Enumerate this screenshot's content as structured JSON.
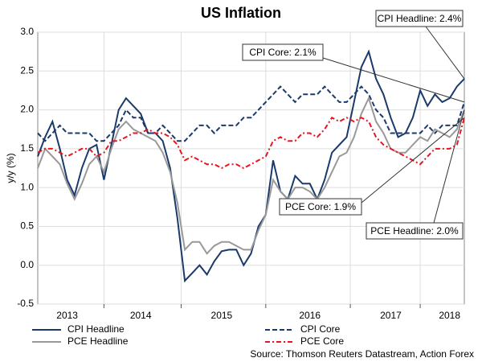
{
  "chart_data": {
    "type": "line",
    "title": "US Inflation",
    "y_label": "y/y (%)",
    "categories": [
      null,
      null,
      null,
      null,
      "2013",
      null,
      null,
      null,
      null,
      null,
      null,
      null,
      null,
      null,
      "2014",
      null,
      null,
      null,
      null,
      null,
      null,
      null,
      null,
      null,
      null,
      "2015",
      null,
      null,
      null,
      null,
      null,
      null,
      null,
      null,
      null,
      null,
      null,
      "2016",
      null,
      null,
      null,
      null,
      null,
      null,
      null,
      null,
      null,
      null,
      "2017",
      null,
      null,
      null,
      null,
      null,
      null,
      null,
      "2018",
      null,
      null
    ],
    "series": [
      {
        "name": "CPI Headline",
        "color": "#1a3a6b",
        "dash": "solid",
        "values": [
          1.4,
          1.65,
          1.85,
          1.5,
          1.1,
          0.9,
          1.25,
          1.5,
          1.55,
          1.1,
          1.55,
          2.0,
          2.15,
          2.05,
          1.95,
          1.7,
          1.7,
          1.6,
          1.25,
          0.6,
          -0.2,
          -0.1,
          0.0,
          -0.12,
          0.05,
          0.18,
          0.2,
          0.2,
          0.0,
          0.15,
          0.5,
          0.65,
          1.35,
          0.95,
          0.85,
          1.15,
          1.05,
          1.05,
          0.85,
          1.1,
          1.45,
          1.55,
          1.65,
          2.1,
          2.55,
          2.75,
          2.4,
          2.2,
          1.9,
          1.65,
          1.7,
          1.9,
          2.25,
          2.05,
          2.2,
          2.1,
          2.15,
          2.3,
          2.4
        ]
      },
      {
        "name": "CPI Core",
        "color": "#1a3a6b",
        "dash": "dashed",
        "values": [
          1.7,
          1.6,
          1.7,
          1.8,
          1.7,
          1.7,
          1.7,
          1.7,
          1.6,
          1.6,
          1.7,
          1.8,
          2.0,
          1.9,
          1.9,
          1.7,
          1.7,
          1.8,
          1.7,
          1.6,
          1.6,
          1.7,
          1.8,
          1.8,
          1.7,
          1.8,
          1.8,
          1.8,
          1.9,
          1.9,
          2.0,
          2.1,
          2.2,
          2.3,
          2.2,
          2.1,
          2.2,
          2.2,
          2.2,
          2.3,
          2.2,
          2.1,
          2.1,
          2.2,
          2.3,
          2.2,
          2.0,
          1.9,
          1.7,
          1.7,
          1.7,
          1.7,
          1.7,
          1.8,
          1.7,
          1.8,
          1.8,
          1.8,
          2.1
        ]
      },
      {
        "name": "PCE Headline",
        "color": "#999999",
        "dash": "solid",
        "values": [
          1.25,
          1.5,
          1.4,
          1.3,
          1.05,
          0.85,
          1.05,
          1.3,
          1.4,
          1.2,
          1.5,
          1.75,
          1.85,
          1.75,
          1.7,
          1.65,
          1.6,
          1.45,
          1.2,
          0.8,
          0.2,
          0.3,
          0.3,
          0.15,
          0.25,
          0.3,
          0.3,
          0.25,
          0.2,
          0.2,
          0.45,
          0.65,
          1.1,
          0.95,
          0.85,
          1.0,
          1.0,
          0.95,
          0.85,
          1.0,
          1.2,
          1.4,
          1.45,
          1.65,
          1.95,
          2.15,
          1.85,
          1.7,
          1.5,
          1.45,
          1.45,
          1.55,
          1.65,
          1.6,
          1.75,
          1.7,
          1.65,
          1.75,
          2.0
        ]
      },
      {
        "name": "PCE Core",
        "color": "#e8141e",
        "dash": "dashdot",
        "values": [
          1.45,
          1.5,
          1.5,
          1.45,
          1.4,
          1.45,
          1.5,
          1.5,
          1.4,
          1.45,
          1.6,
          1.6,
          1.65,
          1.7,
          1.7,
          1.75,
          1.7,
          1.7,
          1.65,
          1.55,
          1.35,
          1.4,
          1.35,
          1.3,
          1.3,
          1.25,
          1.3,
          1.3,
          1.25,
          1.3,
          1.35,
          1.4,
          1.6,
          1.65,
          1.6,
          1.6,
          1.7,
          1.7,
          1.65,
          1.75,
          1.9,
          1.85,
          1.9,
          1.85,
          1.9,
          1.85,
          1.65,
          1.55,
          1.5,
          1.45,
          1.4,
          1.35,
          1.3,
          1.4,
          1.5,
          1.5,
          1.5,
          1.55,
          1.9
        ]
      }
    ],
    "ylim": [
      -0.5,
      3.0
    ],
    "yticks": [
      {
        "value": 3.0,
        "label": "3.0"
      },
      {
        "value": 2.5,
        "label": "2.5"
      },
      {
        "value": 2.0,
        "label": "2.0"
      },
      {
        "value": 1.5,
        "label": "1.5"
      },
      {
        "value": 1.0,
        "label": "1.0"
      },
      {
        "value": 0.5,
        "label": "0.5"
      },
      {
        "value": 0.0,
        "label": "0.0"
      },
      {
        "value": -0.5,
        "label": "-0.5"
      }
    ],
    "grid": true,
    "annotations": [
      "CPI Headline: 2.4%",
      "CPI Core: 2.1%",
      "PCE Headline: 2.0%",
      "PCE Core: 1.9%"
    ],
    "source": "Source: Thomson Reuters Datastream, Action Forex"
  }
}
